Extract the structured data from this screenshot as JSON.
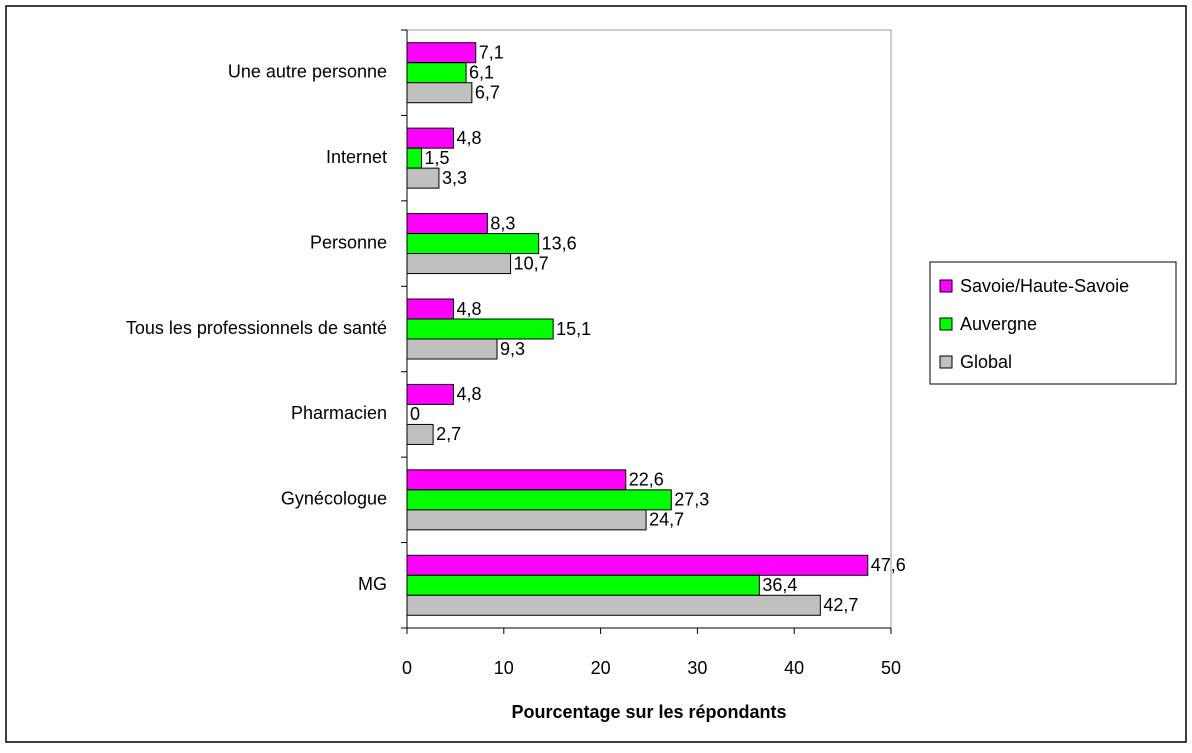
{
  "chart_data": {
    "type": "bar",
    "orientation": "horizontal",
    "xlabel": "Pourcentage sur les répondants",
    "categories": [
      "Une autre personne",
      "Internet",
      "Personne",
      "Tous les professionnels de santé",
      "Pharmacien",
      "Gynécologue",
      "MG"
    ],
    "series": [
      {
        "name": "Savoie/Haute-Savoie",
        "color": "#ff00ff",
        "values": [
          7.1,
          4.8,
          8.3,
          4.8,
          4.8,
          22.6,
          47.6
        ],
        "value_labels": [
          "7,1",
          "4,8",
          "8,3",
          "4,8",
          "4,8",
          "22,6",
          "47,6"
        ]
      },
      {
        "name": "Auvergne",
        "color": "#00ff00",
        "values": [
          6.1,
          1.5,
          13.6,
          15.1,
          0,
          27.3,
          36.4
        ],
        "value_labels": [
          "6,1",
          "1,5",
          "13,6",
          "15,1",
          "0",
          "27,3",
          "36,4"
        ]
      },
      {
        "name": "Global",
        "color": "#c0c0c0",
        "values": [
          6.7,
          3.3,
          10.7,
          9.3,
          2.7,
          24.7,
          42.7
        ],
        "value_labels": [
          "6,7",
          "3,3",
          "10,7",
          "9,3",
          "2,7",
          "24,7",
          "42,7"
        ]
      }
    ],
    "xlim": [
      0,
      50
    ],
    "xticks": [
      0,
      10,
      20,
      30,
      40,
      50
    ],
    "legend": "right"
  }
}
